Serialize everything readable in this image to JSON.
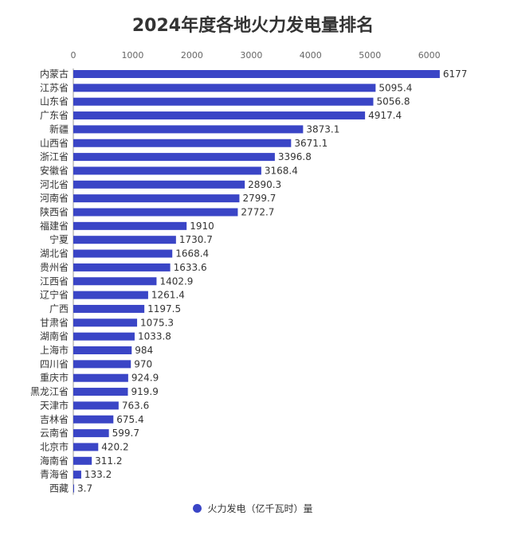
{
  "chart_data": {
    "type": "bar",
    "orientation": "horizontal",
    "title": "2024年度各地火力发电量排名",
    "categories": [
      "内蒙古",
      "江苏省",
      "山东省",
      "广东省",
      "新疆",
      "山西省",
      "浙江省",
      "安徽省",
      "河北省",
      "河南省",
      "陕西省",
      "福建省",
      "宁夏",
      "湖北省",
      "贵州省",
      "江西省",
      "辽宁省",
      "广西",
      "甘肃省",
      "湖南省",
      "上海市",
      "四川省",
      "重庆市",
      "黑龙江省",
      "天津市",
      "吉林省",
      "云南省",
      "北京市",
      "海南省",
      "青海省",
      "西藏"
    ],
    "series": [
      {
        "name": "火力发电（亿千瓦时）量",
        "values": [
          6177,
          5095.4,
          5056.8,
          4917.4,
          3873.1,
          3671.1,
          3396.8,
          3168.4,
          2890.3,
          2799.7,
          2772.7,
          1910,
          1730.7,
          1668.4,
          1633.6,
          1402.9,
          1261.4,
          1197.5,
          1075.3,
          1033.8,
          984,
          970,
          924.9,
          919.9,
          763.6,
          675.4,
          599.7,
          420.2,
          311.2,
          133.2,
          3.7
        ]
      }
    ],
    "xlim": [
      0,
      6500
    ],
    "xticks": [
      "0",
      "1000",
      "2000",
      "3000",
      "4000",
      "5000",
      "6000"
    ],
    "xtick_values": [
      0,
      1000,
      2000,
      3000,
      4000,
      5000,
      6000
    ],
    "axis_position": "top",
    "legend": "bottom",
    "grid": false,
    "bar_color": "#3a45c6"
  }
}
